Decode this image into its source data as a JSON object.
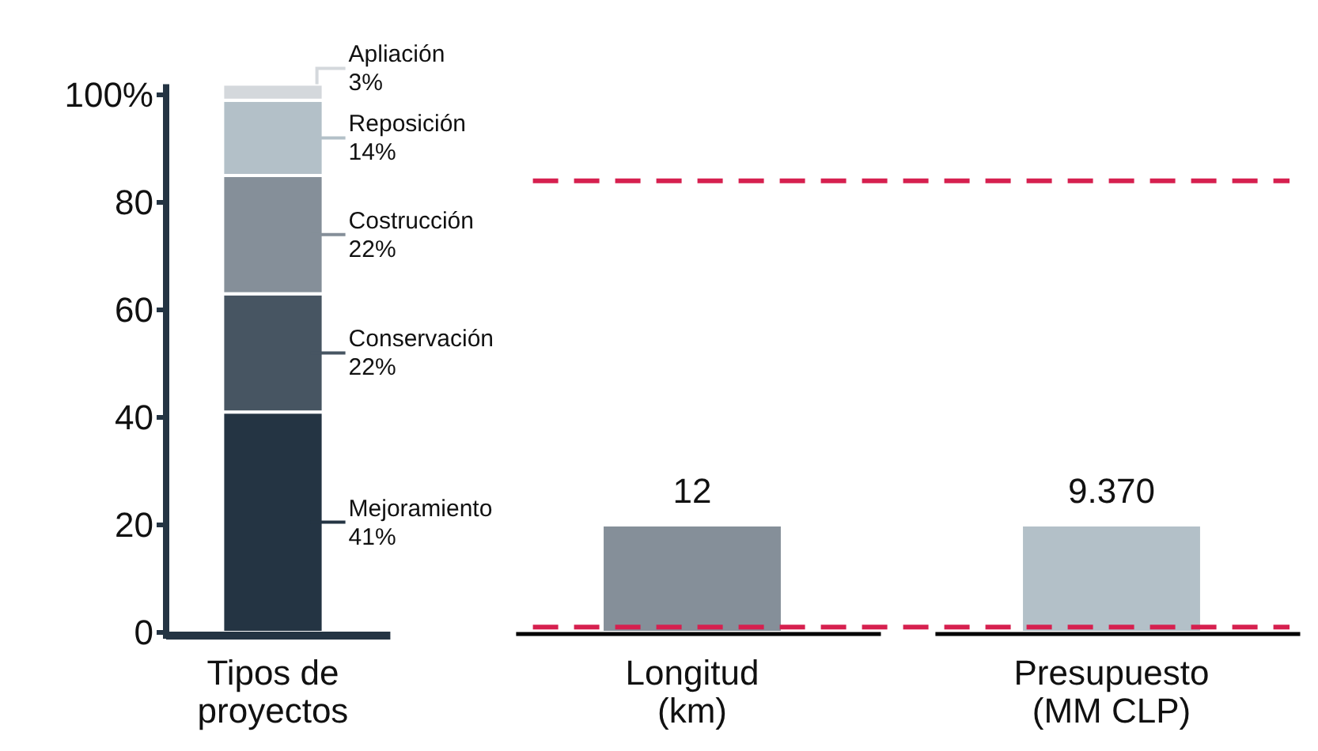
{
  "chart_data": {
    "type": "bar",
    "stacked": true,
    "categories": [
      "Tipos de\nproyectos",
      "Longitud\n(km)",
      "Presupuesto\n(MM CLP)"
    ],
    "series": [
      {
        "name": "Mejoramiento",
        "color": "#243443",
        "values": [
          41,
          null,
          null
        ],
        "value_labels": [
          "41%",
          null,
          null
        ]
      },
      {
        "name": "Conservación",
        "color": "#475562",
        "values": [
          22,
          null,
          null
        ],
        "value_labels": [
          "22%",
          null,
          null
        ]
      },
      {
        "name": "Costrucción",
        "color": "#858f99",
        "values": [
          22,
          null,
          null
        ],
        "value_labels": [
          "22%",
          null,
          null
        ]
      },
      {
        "name": "Reposición",
        "color": "#b3c0c8",
        "values": [
          14,
          null,
          null
        ],
        "value_labels": [
          "14%",
          null,
          null
        ]
      },
      {
        "name": "Apliación",
        "color": "#d4d8dc",
        "values": [
          3,
          null,
          null
        ],
        "value_labels": [
          "3%",
          null,
          null
        ]
      },
      {
        "colors": [
          null,
          "#858f99",
          "#b3c0c8"
        ],
        "values": [
          null,
          20,
          20
        ]
      }
    ],
    "ylim": [
      0,
      102
    ],
    "yticks": [
      0,
      20,
      40,
      60,
      80,
      {
        "value": 100,
        "label": "100%"
      }
    ],
    "ref_lines": [
      {
        "axis": "y",
        "value": 84,
        "color": "#d6204f",
        "line_style": "dashed"
      },
      {
        "axis": "y",
        "value": 1,
        "color": "#d6204f",
        "line_style": "dashed"
      }
    ],
    "annotations": [
      {
        "text": "12",
        "x": "Longitud\n(km)",
        "y": 20
      },
      {
        "text": "9.370",
        "x": "Presupuesto\n(MM CLP)",
        "y": 20
      }
    ],
    "grid": false
  }
}
